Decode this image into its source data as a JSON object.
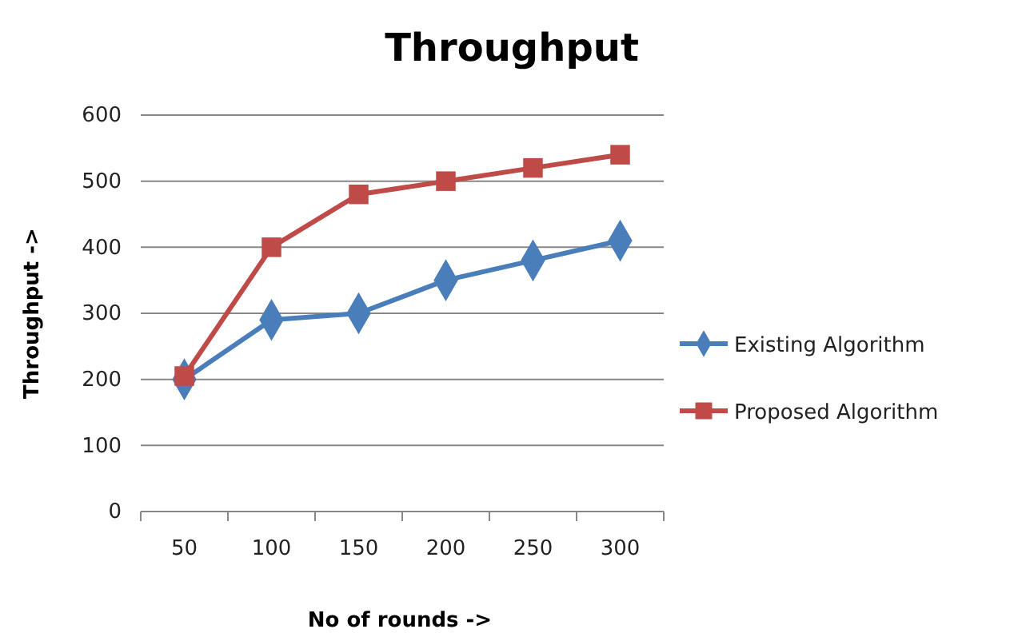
{
  "chart_data": {
    "type": "line",
    "title": "Throughput",
    "xlabel": "No of rounds ->",
    "ylabel": "Throughput ->",
    "categories": [
      "50",
      "100",
      "150",
      "200",
      "250",
      "300"
    ],
    "series": [
      {
        "name": "Existing Algorithm",
        "color": "#4a7ebb",
        "marker": "diamond",
        "values": [
          200,
          290,
          300,
          350,
          380,
          410
        ]
      },
      {
        "name": "Proposed Algorithm",
        "color": "#be4b48",
        "marker": "square",
        "values": [
          205,
          400,
          480,
          500,
          520,
          540
        ]
      }
    ],
    "ylim": [
      0,
      600
    ],
    "yticks": [
      0,
      100,
      200,
      300,
      400,
      500,
      600
    ],
    "grid": "y",
    "legend": "right",
    "line_style": "solid"
  }
}
